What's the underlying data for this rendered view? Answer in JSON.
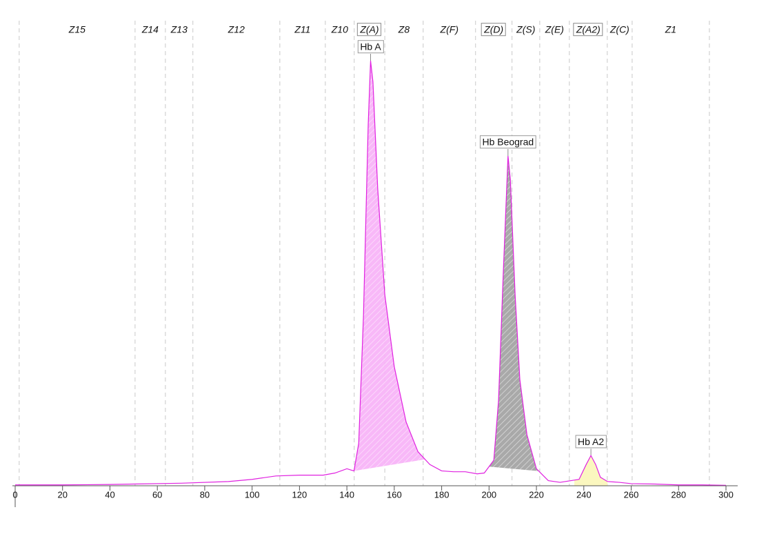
{
  "chart_data": {
    "type": "electropherogram",
    "xlim": [
      0,
      300
    ],
    "ylim": [
      0,
      100
    ],
    "xticks": [
      0,
      20,
      40,
      60,
      80,
      100,
      120,
      140,
      160,
      180,
      200,
      220,
      240,
      260,
      280,
      300
    ],
    "zone_boundaries": [
      1.7,
      50.6,
      63.4,
      75,
      111.7,
      130.9,
      143.1,
      156,
      172.2,
      194.3,
      209.7,
      221.4,
      233.9,
      249.9,
      260.4,
      293
    ],
    "zones": [
      {
        "label": "Z15",
        "boxed": false
      },
      {
        "label": "Z14",
        "boxed": false
      },
      {
        "label": "Z13",
        "boxed": false
      },
      {
        "label": "Z12",
        "boxed": false
      },
      {
        "label": "Z11",
        "boxed": false
      },
      {
        "label": "Z10",
        "boxed": false
      },
      {
        "label": "Z(A)",
        "boxed": true
      },
      {
        "label": "Z8",
        "boxed": false
      },
      {
        "label": "Z(F)",
        "boxed": false
      },
      {
        "label": "Z(D)",
        "boxed": true
      },
      {
        "label": "Z(S)",
        "boxed": false
      },
      {
        "label": "Z(E)",
        "boxed": false
      },
      {
        "label": "Z(A2)",
        "boxed": true
      },
      {
        "label": "Z(C)",
        "boxed": false
      },
      {
        "label": "Z1",
        "boxed": false
      }
    ],
    "trace": {
      "color": "#e020e0",
      "x": [
        0,
        20,
        40,
        50,
        70,
        90,
        100,
        110,
        120,
        130,
        135,
        140,
        143,
        145,
        147,
        149,
        150,
        151,
        153,
        156,
        160,
        165,
        170,
        175,
        180,
        185,
        190,
        195,
        198,
        202,
        204,
        206,
        208,
        209,
        211,
        213,
        216,
        220,
        225,
        230,
        238,
        241,
        243,
        245,
        247,
        250,
        255,
        260,
        270,
        280,
        290,
        300
      ],
      "values": [
        0.2,
        0.2,
        0.3,
        0.4,
        0.6,
        1.0,
        1.5,
        2.3,
        2.5,
        2.5,
        3.0,
        4.0,
        3.5,
        10,
        40,
        85,
        100,
        95,
        70,
        45,
        28,
        15,
        8,
        5,
        3.5,
        3.3,
        3.3,
        2.8,
        3.0,
        6,
        20,
        50,
        77.6,
        72,
        45,
        25,
        12,
        4,
        1.2,
        0.8,
        1.5,
        5,
        7.1,
        5,
        2,
        1.0,
        0.8,
        0.5,
        0.4,
        0.2,
        0.2,
        0.1
      ]
    },
    "peaks": [
      {
        "label": "Hb A",
        "start": 143,
        "end": 173,
        "color": "#f7b0f7",
        "hatch": true
      },
      {
        "label": "Hb Beograd",
        "start": 200,
        "end": 221,
        "color": "#a0a0a0",
        "hatch": true
      },
      {
        "label": "Hb A2",
        "start": 236,
        "end": 250,
        "color": "#fbf6b8",
        "hatch": false
      }
    ]
  }
}
